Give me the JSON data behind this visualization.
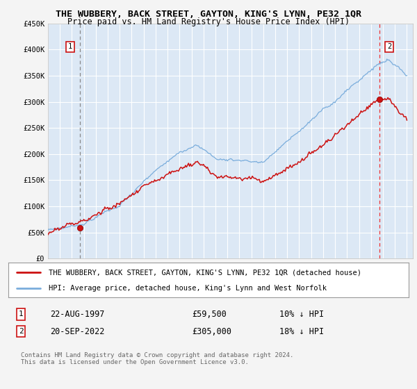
{
  "title": "THE WUBBERY, BACK STREET, GAYTON, KING'S LYNN, PE32 1QR",
  "subtitle": "Price paid vs. HM Land Registry's House Price Index (HPI)",
  "fig_bg_color": "#f4f4f4",
  "plot_bg_color": "#dce8f5",
  "grid_color": "#ffffff",
  "hpi_color": "#7aaddc",
  "price_color": "#cc1111",
  "dashed1_color": "#888888",
  "dashed2_color": "#ee3333",
  "ylim": [
    0,
    450000
  ],
  "yticks": [
    0,
    50000,
    100000,
    150000,
    200000,
    250000,
    300000,
    350000,
    400000,
    450000
  ],
  "ytick_labels": [
    "£0",
    "£50K",
    "£100K",
    "£150K",
    "£200K",
    "£250K",
    "£300K",
    "£350K",
    "£400K",
    "£450K"
  ],
  "sale1_year": 1997.647,
  "sale1_price": 59500,
  "sale1_label": "1",
  "sale2_year": 2022.72,
  "sale2_price": 305000,
  "sale2_label": "2",
  "legend_line1": "THE WUBBERY, BACK STREET, GAYTON, KING'S LYNN, PE32 1QR (detached house)",
  "legend_line2": "HPI: Average price, detached house, King's Lynn and West Norfolk",
  "note1_num": "1",
  "note1_date": "22-AUG-1997",
  "note1_price": "£59,500",
  "note1_hpi": "10% ↓ HPI",
  "note2_num": "2",
  "note2_date": "20-SEP-2022",
  "note2_price": "£305,000",
  "note2_hpi": "18% ↓ HPI",
  "footer": "Contains HM Land Registry data © Crown copyright and database right 2024.\nThis data is licensed under the Open Government Licence v3.0."
}
